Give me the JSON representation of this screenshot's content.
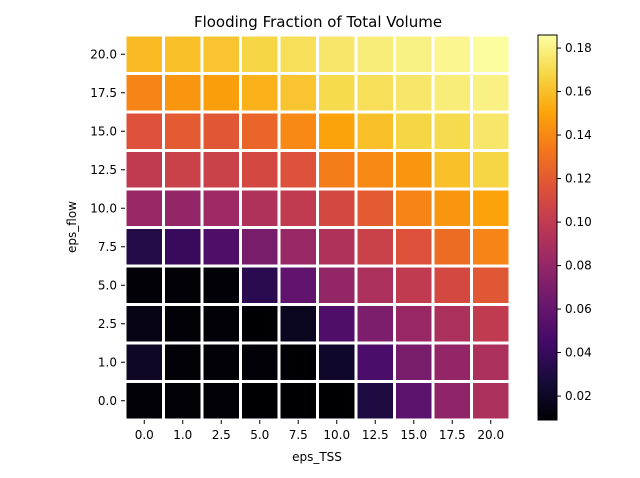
{
  "chart_data": {
    "type": "heatmap",
    "title": "Flooding Fraction of Total Volume",
    "xlabel": "eps_TSS",
    "ylabel": "eps_flow",
    "x_categories": [
      "0.0",
      "1.0",
      "2.5",
      "5.0",
      "7.5",
      "10.0",
      "12.5",
      "15.0",
      "17.5",
      "20.0"
    ],
    "y_categories": [
      "0.0",
      "1.0",
      "2.5",
      "5.0",
      "7.5",
      "10.0",
      "12.5",
      "15.0",
      "17.5",
      "20.0"
    ],
    "values": [
      [
        0.01,
        0.01,
        0.01,
        0.009,
        0.009,
        0.009,
        0.03,
        0.055,
        0.078,
        0.09
      ],
      [
        0.02,
        0.01,
        0.01,
        0.01,
        0.009,
        0.022,
        0.048,
        0.068,
        0.08,
        0.09
      ],
      [
        0.015,
        0.01,
        0.01,
        0.009,
        0.018,
        0.05,
        0.07,
        0.082,
        0.09,
        0.1
      ],
      [
        0.01,
        0.01,
        0.01,
        0.035,
        0.058,
        0.08,
        0.09,
        0.1,
        0.11,
        0.118
      ],
      [
        0.032,
        0.04,
        0.05,
        0.068,
        0.082,
        0.092,
        0.105,
        0.115,
        0.128,
        0.138
      ],
      [
        0.082,
        0.08,
        0.084,
        0.092,
        0.1,
        0.11,
        0.12,
        0.138,
        0.145,
        0.15
      ],
      [
        0.1,
        0.105,
        0.105,
        0.11,
        0.115,
        0.135,
        0.14,
        0.145,
        0.16,
        0.168
      ],
      [
        0.115,
        0.12,
        0.118,
        0.125,
        0.14,
        0.15,
        0.16,
        0.168,
        0.17,
        0.175
      ],
      [
        0.138,
        0.145,
        0.148,
        0.155,
        0.162,
        0.17,
        0.172,
        0.175,
        0.178,
        0.18
      ],
      [
        0.158,
        0.16,
        0.162,
        0.168,
        0.172,
        0.175,
        0.178,
        0.18,
        0.182,
        0.185
      ]
    ],
    "colorbar": {
      "min": 0.009,
      "max": 0.186,
      "ticks": [
        0.02,
        0.04,
        0.06,
        0.08,
        0.1,
        0.12,
        0.14,
        0.16,
        0.18
      ],
      "tick_labels": [
        "0.02",
        "0.04",
        "0.06",
        "0.08",
        "0.10",
        "0.12",
        "0.14",
        "0.16",
        "0.18"
      ],
      "colormap": "inferno"
    },
    "grid": false
  }
}
